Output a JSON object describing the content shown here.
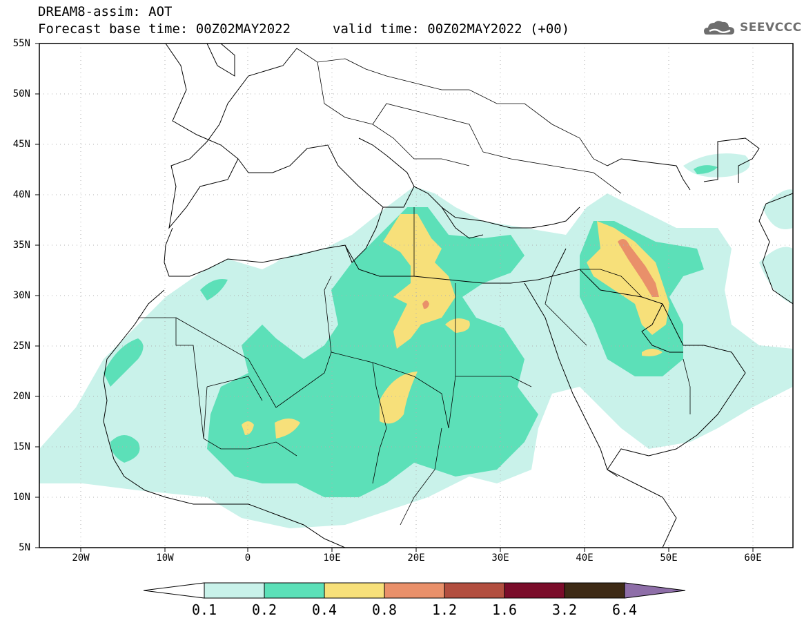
{
  "title": {
    "line1": "DREAM8-assim: AOT",
    "line2": "Forecast base time: 00Z02MAY2022",
    "line3": "valid time: 00Z02MAY2022 (+00)"
  },
  "logo": {
    "text": "SEEVCCC"
  },
  "lat_ticks": [
    "55N",
    "50N",
    "45N",
    "40N",
    "35N",
    "30N",
    "25N",
    "20N",
    "15N",
    "10N",
    "5N"
  ],
  "lon_ticks": [
    "20W",
    "10W",
    "0",
    "10E",
    "20E",
    "30E",
    "40E",
    "50E",
    "60E"
  ],
  "colorbar": {
    "labels": [
      "0.1",
      "0.2",
      "0.4",
      "0.8",
      "1.2",
      "1.6",
      "3.2",
      "6.4"
    ],
    "colors": [
      "#ffffff",
      "#c9f2ea",
      "#5ce0b8",
      "#f7e07a",
      "#e9906a",
      "#b24e3f",
      "#7a0c2a",
      "#3d2a15",
      "#8e6ea8"
    ]
  },
  "map_colors": {
    "ocean": "#ffffff",
    "border": "#000000",
    "grid": "#b0b0b0"
  }
}
